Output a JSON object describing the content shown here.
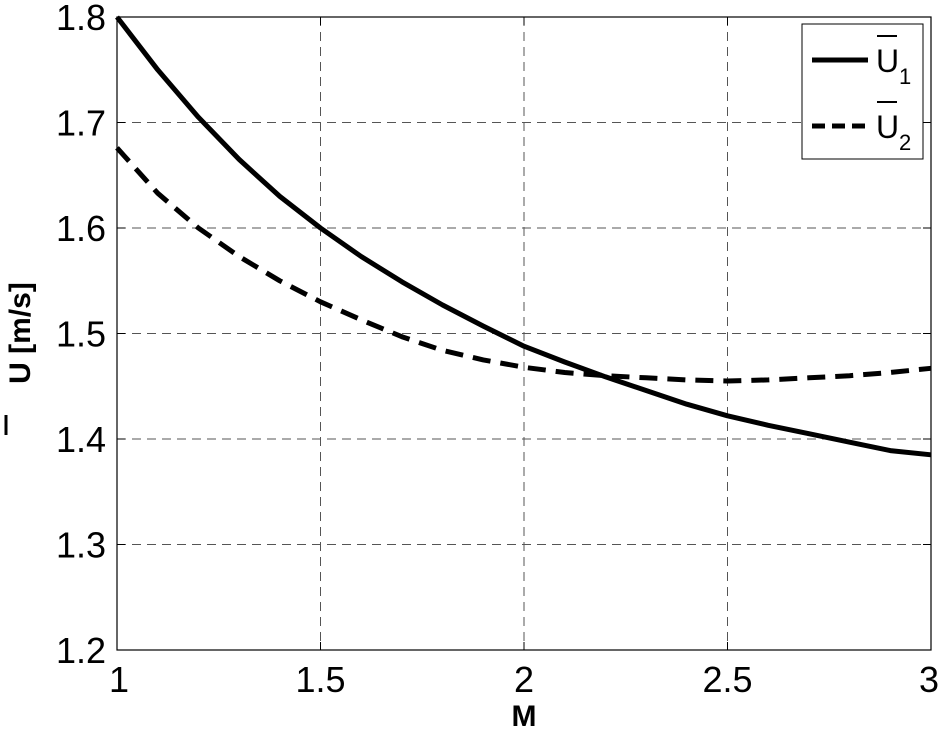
{
  "chart_data": {
    "type": "line",
    "xlabel": "M",
    "ylabel": "U [m/s]",
    "xlim": [
      1,
      3
    ],
    "ylim": [
      1.2,
      1.8
    ],
    "xticks": [
      "1",
      "1.5",
      "2",
      "2.5",
      "3"
    ],
    "yticks": [
      "1.2",
      "1.3",
      "1.4",
      "1.5",
      "1.6",
      "1.7",
      "1.8"
    ],
    "grid": true,
    "legend_position": "top-right",
    "series": [
      {
        "name": "U1",
        "label_main": "U",
        "label_sub": "1",
        "style": "solid",
        "color": "#000000",
        "x": [
          1.0,
          1.1,
          1.2,
          1.3,
          1.4,
          1.5,
          1.6,
          1.7,
          1.8,
          1.9,
          2.0,
          2.1,
          2.2,
          2.3,
          2.4,
          2.5,
          2.6,
          2.7,
          2.8,
          2.9,
          3.0
        ],
        "y": [
          1.8,
          1.75,
          1.705,
          1.665,
          1.63,
          1.6,
          1.573,
          1.549,
          1.527,
          1.507,
          1.488,
          1.473,
          1.459,
          1.446,
          1.433,
          1.422,
          1.413,
          1.405,
          1.397,
          1.389,
          1.385
        ]
      },
      {
        "name": "U2",
        "label_main": "U",
        "label_sub": "2",
        "style": "dashed",
        "color": "#000000",
        "x": [
          1.0,
          1.1,
          1.2,
          1.3,
          1.4,
          1.5,
          1.6,
          1.7,
          1.8,
          1.9,
          2.0,
          2.1,
          2.2,
          2.3,
          2.4,
          2.5,
          2.6,
          2.7,
          2.8,
          2.9,
          3.0
        ],
        "y": [
          1.676,
          1.633,
          1.6,
          1.573,
          1.55,
          1.53,
          1.513,
          1.497,
          1.484,
          1.475,
          1.468,
          1.463,
          1.46,
          1.458,
          1.456,
          1.455,
          1.456,
          1.458,
          1.46,
          1.463,
          1.467
        ]
      }
    ]
  }
}
